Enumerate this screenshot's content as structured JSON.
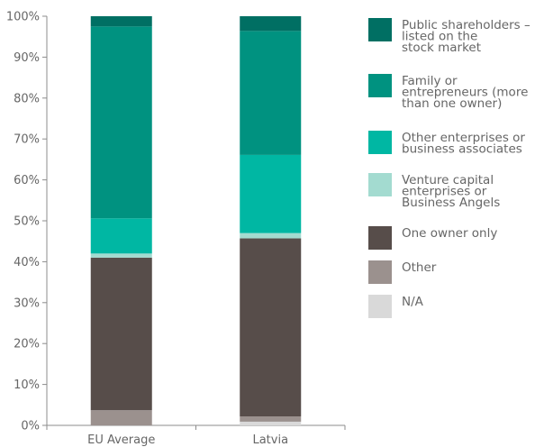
{
  "chart_data": {
    "type": "bar",
    "stacked": true,
    "percent_scale": true,
    "categories": [
      "EU Average",
      "Latvia"
    ],
    "ylim": [
      0,
      100
    ],
    "yticks": [
      "0%",
      "10%",
      "20%",
      "30%",
      "40%",
      "50%",
      "60%",
      "70%",
      "80%",
      "90%",
      "100%"
    ],
    "legend_position": "right",
    "series": [
      {
        "name": "N/A",
        "color": "#d9d9d9",
        "values": [
          0.0,
          0.9
        ]
      },
      {
        "name": "Other",
        "color": "#9b918e",
        "values": [
          3.7,
          1.3
        ]
      },
      {
        "name": "One owner only",
        "color": "#574d4a",
        "values": [
          37.3,
          43.5
        ]
      },
      {
        "name": "Venture capital enterprises or Business Angels",
        "color": "#a3dbd0",
        "values": [
          1.0,
          1.3
        ]
      },
      {
        "name": "Other enterprises or business associates",
        "color": "#00b7a3",
        "values": [
          8.6,
          19.1
        ]
      },
      {
        "name": "Family or entrepreneurs (more than one owner)",
        "color": "#009280",
        "values": [
          46.9,
          30.3
        ]
      },
      {
        "name": "Public shareholders – listed on the stock market",
        "color": "#006f63",
        "values": [
          2.5,
          3.6
        ]
      }
    ],
    "legend": [
      {
        "lines": [
          "Public shareholders –",
          "listed on the",
          "stock market"
        ],
        "color": "#006f63"
      },
      {
        "lines": [
          "Family or",
          "entrepreneurs (more",
          "than one owner)"
        ],
        "color": "#009280"
      },
      {
        "lines": [
          "Other enterprises or",
          "business associates"
        ],
        "color": "#00b7a3"
      },
      {
        "lines": [
          "Venture capital",
          "enterprises or",
          "Business Angels"
        ],
        "color": "#a3dbd0"
      },
      {
        "lines": [
          "One owner only"
        ],
        "color": "#574d4a"
      },
      {
        "lines": [
          "Other"
        ],
        "color": "#9b918e"
      },
      {
        "lines": [
          "N/A"
        ],
        "color": "#d9d9d9"
      }
    ]
  }
}
